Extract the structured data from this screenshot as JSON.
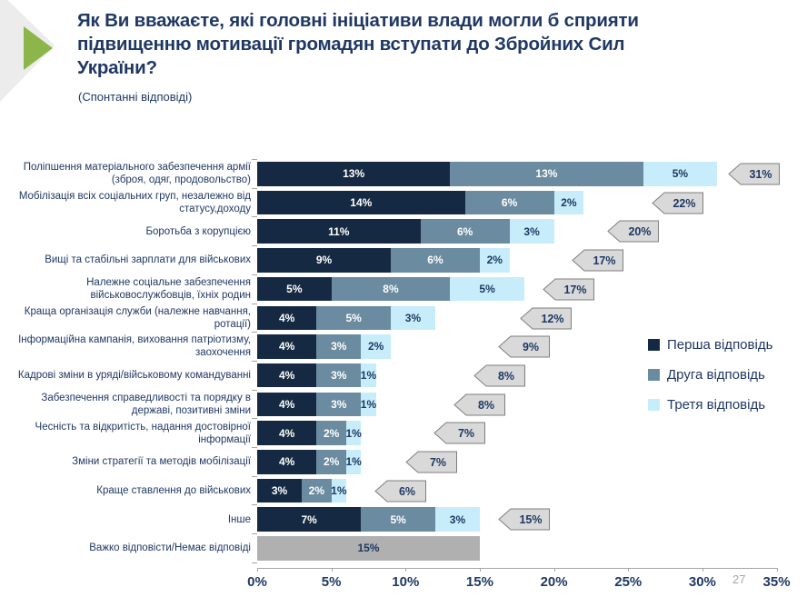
{
  "page_number": "27",
  "header": {
    "title": "Як Ви вважаєте, які головні ініціативи влади могли б сприяти підвищенню мотивації громадян вступати до Збройних Сил України?",
    "subtitle": "(Спонтанні відповіді)"
  },
  "colors": {
    "series1": "#152a42",
    "series2": "#6a8ba0",
    "series3": "#c6edf9",
    "no_answer_bar": "#b0b0b0",
    "callout_fill": "#d9d9d9",
    "callout_border": "#7f7f7f",
    "text_navy": "#1f3864",
    "accent_green": "#8cb64a",
    "deco_gray": "#ececec",
    "axis_gray": "#a6a6a6",
    "white": "#ffffff"
  },
  "chart_data": {
    "type": "bar",
    "orientation": "horizontal",
    "stacked": true,
    "title": "Як Ви вважаєте, які головні ініціативи влади могли б сприяти підвищенню мотивації громадян вступати до Збройних Сил України?",
    "subtitle": "(Спонтанні відповіді)",
    "xlabel": "",
    "ylabel": "",
    "xlim": [
      0,
      35
    ],
    "x_ticks": [
      "0%",
      "5%",
      "10%",
      "15%",
      "20%",
      "25%",
      "30%",
      "35%"
    ],
    "grid": false,
    "legend_position": "right",
    "series_names": [
      "Перша відповідь",
      "Друга відповідь",
      "Третя відповідь"
    ],
    "rows": [
      {
        "label": "Поліпшення матеріального забезпечення армії (зброя, одяг, продовольство)",
        "values": [
          13,
          13,
          5
        ],
        "total": 31,
        "callout_x": 31.7
      },
      {
        "label": "Мобілізація всіх соціальних груп, незалежно від статусу,доходу",
        "values": [
          14,
          6,
          2
        ],
        "total": 22,
        "callout_x": 26.6
      },
      {
        "label": "Боротьба з корупцією",
        "values": [
          11,
          6,
          3
        ],
        "total": 20,
        "callout_x": 23.6
      },
      {
        "label": "Вищі та стабільні зарплати для військових",
        "values": [
          9,
          6,
          2
        ],
        "total": 17,
        "callout_x": 21.2
      },
      {
        "label": "Належне соціальне забезпечення військовослужбовців, їхніх родин",
        "values": [
          5,
          8,
          5
        ],
        "total": 17,
        "callout_x": 19.2
      },
      {
        "label": "Краща організація служби (належне навчання, ротації)",
        "values": [
          4,
          5,
          3
        ],
        "total": 12,
        "callout_x": 17.7
      },
      {
        "label": "Інформаційна кампанія, виховання патріотизму, заохочення",
        "values": [
          4,
          3,
          2
        ],
        "total": 9,
        "callout_x": 16.2
      },
      {
        "label": "Кадрові зміни в уряді/військовому командуванні",
        "values": [
          4,
          3,
          1
        ],
        "total": 8,
        "callout_x": 14.6
      },
      {
        "label": "Забезпечення справедливості та порядку в державі, позитивні зміни",
        "values": [
          4,
          3,
          1
        ],
        "total": 8,
        "callout_x": 13.2
      },
      {
        "label": "Чесність та відкритість, надання достовірної інформації",
        "values": [
          4,
          2,
          1
        ],
        "total": 7,
        "callout_x": 11.9
      },
      {
        "label": "Зміни стратегії та методів мобілізації",
        "values": [
          4,
          2,
          1
        ],
        "total": 7,
        "callout_x": 10.0
      },
      {
        "label": "Краще ставлення до військових",
        "values": [
          3,
          2,
          1
        ],
        "total": 6,
        "callout_x": 7.9
      },
      {
        "label": "Інше",
        "values": [
          7,
          5,
          3
        ],
        "total": 15,
        "callout_x": 16.2
      },
      {
        "label": "Важко відповісти/Немає відповіді",
        "no_answer_value": 15
      }
    ]
  }
}
